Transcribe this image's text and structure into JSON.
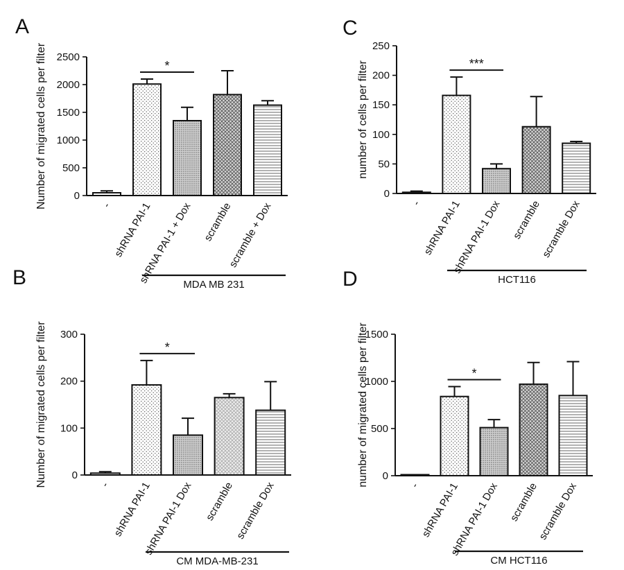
{
  "chart_data": [
    {
      "panel": "A",
      "type": "bar",
      "ylabel": "Number of migrated cells per filter",
      "ylim": [
        0,
        2500
      ],
      "yticks": [
        "0",
        "500",
        "1000",
        "1500",
        "2000",
        "2500"
      ],
      "categories": [
        "-",
        "shRNA PAI-1",
        "shRNA PAI-1 + Dox",
        "scramble",
        "scramble + Dox"
      ],
      "values": [
        50,
        2010,
        1350,
        1820,
        1630
      ],
      "errors": [
        35,
        90,
        240,
        430,
        80
      ],
      "fills": [
        "plain",
        "dots",
        "fine-dots",
        "cross",
        "hlines"
      ],
      "significance": {
        "label": "*",
        "from": 1,
        "to": 2
      },
      "group_label": "MDA MB 231"
    },
    {
      "panel": "C",
      "type": "bar",
      "ylabel": "number of cells per filter",
      "ylim": [
        0,
        250
      ],
      "yticks": [
        "0",
        "50",
        "100",
        "150",
        "200",
        "250"
      ],
      "categories": [
        "-",
        "shRNA PAI-1",
        "shRNA PAI-1 Dox",
        "scramble",
        "scramble Dox"
      ],
      "values": [
        2,
        166,
        42,
        113,
        85
      ],
      "errors": [
        2,
        31,
        8,
        51,
        3
      ],
      "fills": [
        "plain",
        "dots",
        "fine-dots",
        "cross",
        "hlines"
      ],
      "significance": {
        "label": "***",
        "from": 1,
        "to": 2
      },
      "group_label": "HCT116"
    },
    {
      "panel": "B",
      "type": "bar",
      "ylabel": "Number of migrated cells per filter",
      "ylim": [
        0,
        300
      ],
      "yticks": [
        "0",
        "100",
        "200",
        "300"
      ],
      "categories": [
        "-",
        "shRNA PAI-1",
        "shRNA PAI-1 Dox",
        "scramble",
        "scramble Dox"
      ],
      "values": [
        4,
        192,
        85,
        165,
        138
      ],
      "errors": [
        3,
        52,
        36,
        8,
        61
      ],
      "fills": [
        "plain",
        "dots",
        "fine-dots",
        "light-cross",
        "hlines"
      ],
      "significance": {
        "label": "*",
        "from": 1,
        "to": 2
      },
      "group_label": "CM MDA-MB-231"
    },
    {
      "panel": "D",
      "type": "bar",
      "ylabel": "number of migrated cells per filter",
      "ylim": [
        0,
        1500
      ],
      "yticks": [
        "0",
        "500",
        "1000",
        "1500"
      ],
      "categories": [
        "-",
        "shRNA PAI-1",
        "shRNA PAI-1 Dox",
        "scramble",
        "scramble Dox"
      ],
      "values": [
        3,
        840,
        510,
        970,
        850
      ],
      "errors": [
        2,
        105,
        85,
        230,
        360
      ],
      "fills": [
        "plain",
        "dots",
        "fine-dots",
        "cross",
        "hlines"
      ],
      "significance": {
        "label": "*",
        "from": 1,
        "to": 2
      },
      "group_label": "CM HCT116"
    }
  ]
}
